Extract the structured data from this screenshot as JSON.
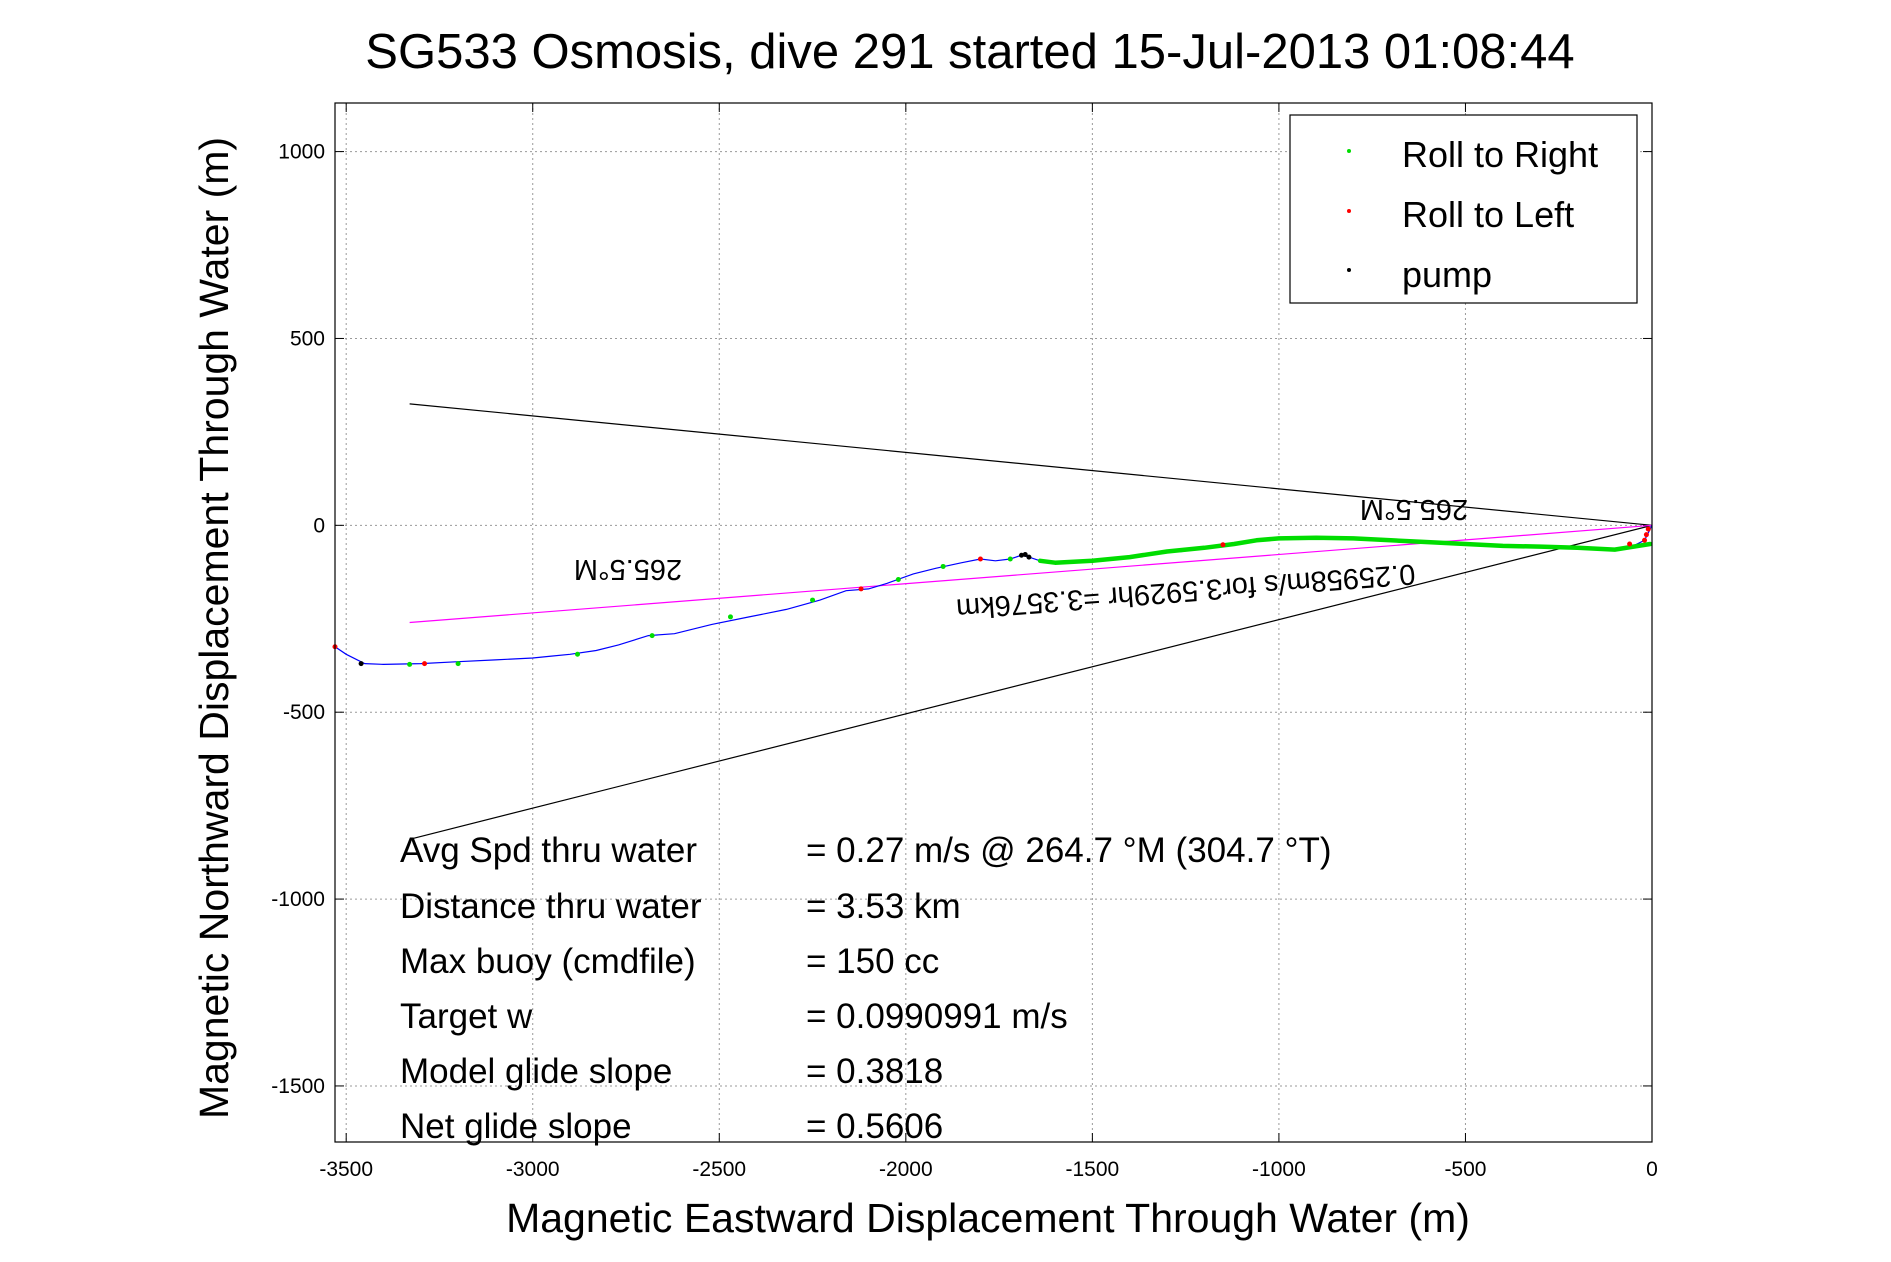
{
  "chart_data": {
    "type": "scatter",
    "title": "SG533 Osmosis, dive 291 started 15-Jul-2013 01:08:44",
    "xlabel": "Magnetic Eastward Displacement Through Water (m)",
    "ylabel": "Magnetic Northward Displacement Through Water (m)",
    "xlim": [
      -3530,
      0
    ],
    "ylim": [
      -1650,
      1130
    ],
    "x_ticks": [
      -3500,
      -3000,
      -2500,
      -2000,
      -1500,
      -1000,
      -500,
      0
    ],
    "y_ticks": [
      1000,
      500,
      0,
      -500,
      -1000,
      -1500
    ],
    "x_tick_labels": [
      "-3500",
      "-3000",
      "-2500",
      "-2000",
      "-1500",
      "-1000",
      "-500",
      "0"
    ],
    "y_tick_labels": [
      "1000",
      "500",
      "0",
      "-500",
      "-1000",
      "-1500"
    ],
    "grid": true,
    "legend_position": "top-right",
    "legend": [
      {
        "label": "Roll to Right",
        "color": "#00dd00"
      },
      {
        "label": "Roll to Left",
        "color": "#ff0000"
      },
      {
        "label": "pump",
        "color": "#000000"
      }
    ],
    "track": {
      "color": "#0000ff",
      "points": [
        [
          0,
          0
        ],
        [
          -10,
          -20
        ],
        [
          -20,
          -40
        ],
        [
          -50,
          -55
        ],
        [
          -120,
          -65
        ],
        [
          -200,
          -60
        ],
        [
          -280,
          -58
        ],
        [
          -350,
          -55
        ],
        [
          -420,
          -55
        ],
        [
          -500,
          -50
        ],
        [
          -560,
          -45
        ],
        [
          -640,
          -45
        ],
        [
          -700,
          -40
        ],
        [
          -780,
          -35
        ],
        [
          -860,
          -35
        ],
        [
          -950,
          -33
        ],
        [
          -1030,
          -35
        ],
        [
          -1100,
          -45
        ],
        [
          -1150,
          -55
        ],
        [
          -1200,
          -60
        ],
        [
          -1260,
          -70
        ],
        [
          -1320,
          -72
        ],
        [
          -1380,
          -80
        ],
        [
          -1450,
          -90
        ],
        [
          -1500,
          -95
        ],
        [
          -1560,
          -100
        ],
        [
          -1600,
          -100
        ],
        [
          -1640,
          -95
        ],
        [
          -1670,
          -85
        ],
        [
          -1690,
          -80
        ],
        [
          -1720,
          -90
        ],
        [
          -1760,
          -95
        ],
        [
          -1800,
          -90
        ],
        [
          -1850,
          -100
        ],
        [
          -1920,
          -115
        ],
        [
          -1980,
          -130
        ],
        [
          -2050,
          -155
        ],
        [
          -2100,
          -170
        ],
        [
          -2160,
          -175
        ],
        [
          -2230,
          -200
        ],
        [
          -2320,
          -225
        ],
        [
          -2420,
          -245
        ],
        [
          -2520,
          -265
        ],
        [
          -2620,
          -290
        ],
        [
          -2690,
          -295
        ],
        [
          -2770,
          -320
        ],
        [
          -2830,
          -335
        ],
        [
          -2900,
          -345
        ],
        [
          -2950,
          -350
        ],
        [
          -3000,
          -355
        ],
        [
          -3100,
          -360
        ],
        [
          -3200,
          -365
        ],
        [
          -3300,
          -370
        ],
        [
          -3400,
          -372
        ],
        [
          -3450,
          -370
        ],
        [
          -3500,
          -345
        ],
        [
          -3530,
          -325
        ]
      ]
    },
    "roll_right": {
      "color": "#00dd00",
      "segments": [
        [
          [
            -5,
            -50
          ],
          [
            -100,
            -65
          ],
          [
            -200,
            -60
          ],
          [
            -300,
            -57
          ],
          [
            -400,
            -55
          ],
          [
            -500,
            -50
          ],
          [
            -600,
            -45
          ],
          [
            -700,
            -40
          ],
          [
            -800,
            -35
          ],
          [
            -900,
            -33
          ],
          [
            -1000,
            -35
          ],
          [
            -1060,
            -40
          ],
          [
            -1120,
            -50
          ],
          [
            -1200,
            -60
          ],
          [
            -1300,
            -70
          ],
          [
            -1400,
            -85
          ],
          [
            -1500,
            -95
          ],
          [
            -1600,
            -100
          ],
          [
            -1640,
            -95
          ]
        ]
      ],
      "points": [
        [
          -1720,
          -90
        ],
        [
          -1900,
          -110
        ],
        [
          -2020,
          -145
        ],
        [
          -2250,
          -200
        ],
        [
          -2470,
          -245
        ],
        [
          -2680,
          -295
        ],
        [
          -2880,
          -345
        ],
        [
          -3200,
          -370
        ],
        [
          -3330,
          -372
        ]
      ]
    },
    "roll_left": {
      "color": "#ff0000",
      "points": [
        [
          -10,
          -10
        ],
        [
          -15,
          -25
        ],
        [
          -20,
          -40
        ],
        [
          -60,
          -50
        ],
        [
          -1150,
          -52
        ],
        [
          -1800,
          -90
        ],
        [
          -2120,
          -170
        ],
        [
          -3290,
          -370
        ],
        [
          -3530,
          -325
        ]
      ]
    },
    "pump": {
      "color": "#000000",
      "points": [
        [
          -1670,
          -85
        ],
        [
          -1680,
          -78
        ],
        [
          -1690,
          -80
        ],
        [
          -3460,
          -370
        ]
      ]
    },
    "heading_lines": {
      "color": "#000000",
      "lines": [
        [
          [
            0,
            0
          ],
          [
            -3330,
            325
          ]
        ],
        [
          [
            0,
            0
          ],
          [
            -3330,
            -840
          ]
        ]
      ]
    },
    "course_line": {
      "color": "#ff00ff",
      "points": [
        [
          0,
          0
        ],
        [
          -3330,
          -260
        ]
      ]
    },
    "annotations": {
      "heading_left": "265.5°M",
      "heading_right": "265.5°M",
      "speed": "0.25958m/s for3.5929hr =3.3576km"
    },
    "stats": [
      {
        "label": "Avg Spd thru water",
        "value": "=  0.27 m/s @ 264.7 °M (304.7 °T)"
      },
      {
        "label": "Distance thru water",
        "value": "=  3.53 km"
      },
      {
        "label": "Max buoy (cmdfile)",
        "value": "= 150 cc"
      },
      {
        "label": "Target w",
        "value": "= 0.0990991 m/s"
      },
      {
        "label": "Model glide slope",
        "value": "= 0.3818"
      },
      {
        "label": "Net glide slope",
        "value": "= 0.5606"
      }
    ]
  }
}
